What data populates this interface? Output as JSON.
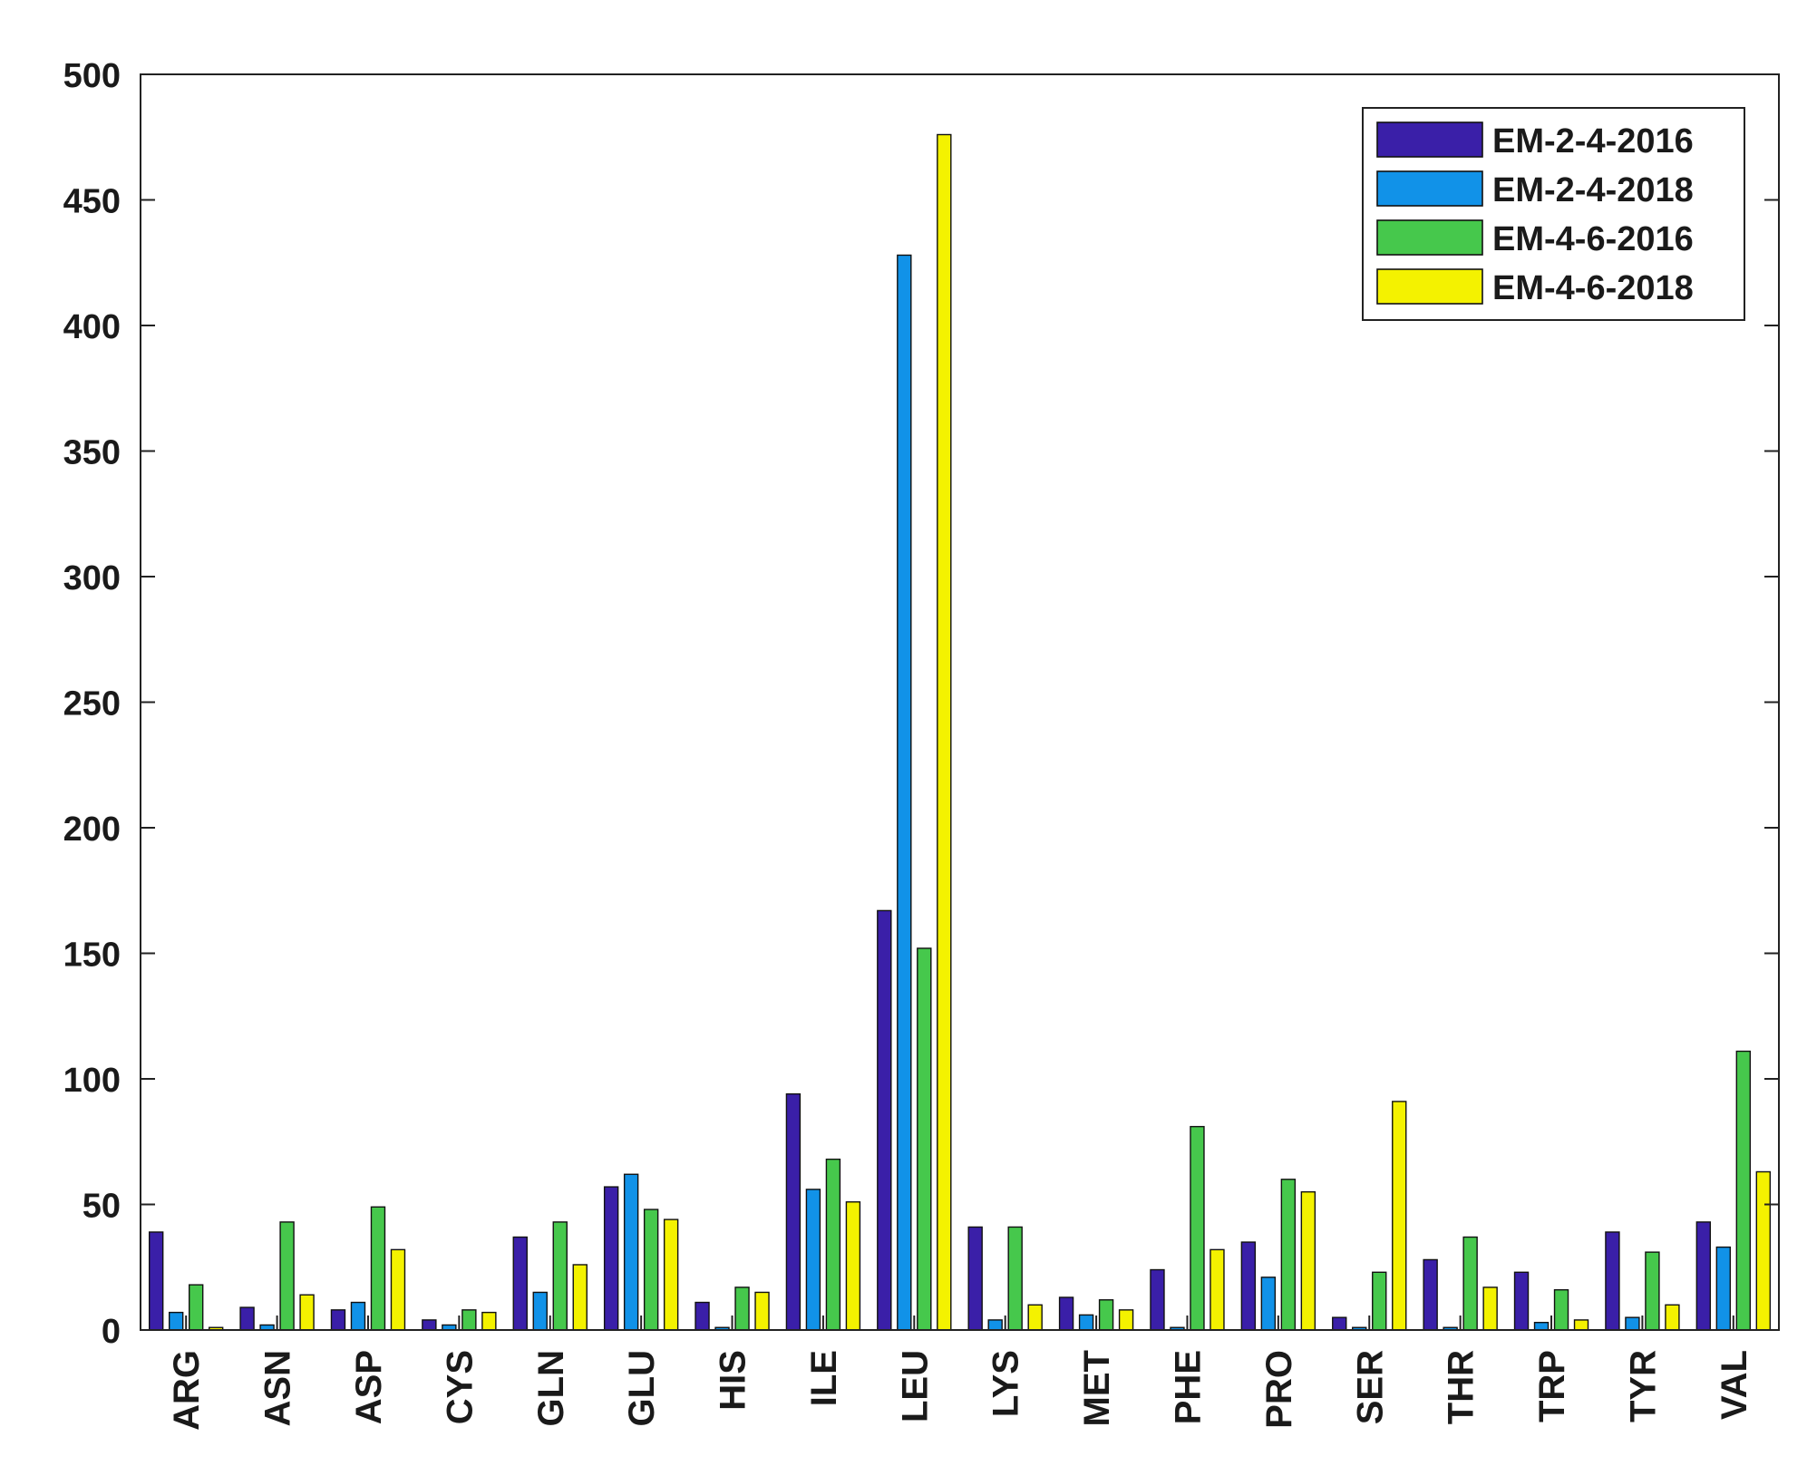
{
  "chart_data": {
    "type": "bar",
    "title": "",
    "xlabel": "",
    "ylabel": "",
    "ylim": [
      0,
      500
    ],
    "yticks": [
      0,
      50,
      100,
      150,
      200,
      250,
      300,
      350,
      400,
      450,
      500
    ],
    "grid": false,
    "legend_position": "top-right",
    "categories": [
      "ARG",
      "ASN",
      "ASP",
      "CYS",
      "GLN",
      "GLU",
      "HIS",
      "ILE",
      "LEU",
      "LYS",
      "MET",
      "PHE",
      "PRO",
      "SER",
      "THR",
      "TRP",
      "TYR",
      "VAL"
    ],
    "series": [
      {
        "name": "EM-2-4-2016",
        "color": "#3a1fa8",
        "values": [
          39,
          9,
          8,
          4,
          37,
          57,
          11,
          94,
          167,
          41,
          13,
          24,
          35,
          5,
          28,
          23,
          39,
          43
        ]
      },
      {
        "name": "EM-2-4-2018",
        "color": "#1192e8",
        "values": [
          7,
          2,
          11,
          2,
          15,
          62,
          1,
          56,
          428,
          4,
          6,
          1,
          21,
          1,
          1,
          3,
          5,
          33
        ]
      },
      {
        "name": "EM-4-6-2016",
        "color": "#46c84c",
        "values": [
          18,
          43,
          49,
          8,
          43,
          48,
          17,
          68,
          152,
          41,
          12,
          81,
          60,
          23,
          37,
          16,
          31,
          111
        ]
      },
      {
        "name": "EM-4-6-2018",
        "color": "#f4f200",
        "values": [
          1,
          14,
          32,
          7,
          26,
          44,
          15,
          51,
          476,
          10,
          8,
          32,
          55,
          91,
          17,
          4,
          10,
          63
        ]
      }
    ]
  }
}
